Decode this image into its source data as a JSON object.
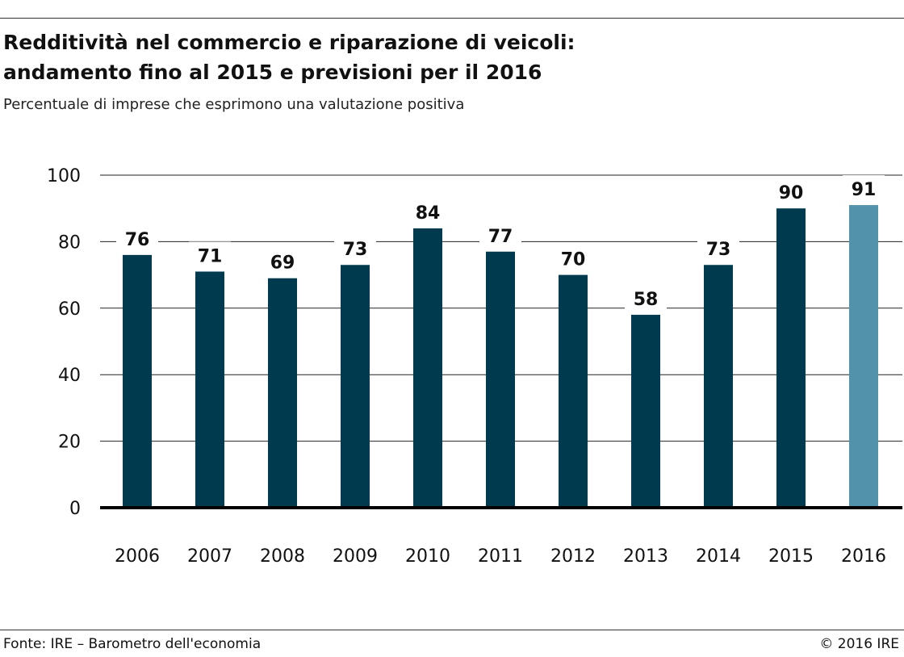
{
  "header": {
    "title_line1": "Redditività nel commercio e riparazione di veicoli:",
    "title_line2": "andamento fino al 2015 e previsioni per il 2016",
    "subtitle": "Percentuale di imprese che esprimono una valutazione positiva"
  },
  "footer": {
    "source": "Fonte: IRE – Barometro dell'economia",
    "copyright": "© 2016 IRE"
  },
  "colors": {
    "bar_actual": "#003a4f",
    "bar_forecast": "#5392ab",
    "gridline": "#222222",
    "baseline": "#000000"
  },
  "chart_data": {
    "type": "bar",
    "title": "Redditività nel commercio e riparazione di veicoli: andamento fino al 2015 e previsioni per il 2016",
    "subtitle": "Percentuale di imprese che esprimono una valutazione positiva",
    "xlabel": "",
    "ylabel": "",
    "categories": [
      "2006",
      "2007",
      "2008",
      "2009",
      "2010",
      "2011",
      "2012",
      "2013",
      "2014",
      "2015",
      "2016"
    ],
    "values": [
      76,
      71,
      69,
      73,
      84,
      77,
      70,
      58,
      73,
      90,
      91
    ],
    "value_labels": [
      "76",
      "71",
      "69",
      "73",
      "84",
      "77",
      "70",
      "58",
      "73",
      "90",
      "91"
    ],
    "forecast_categories": [
      "2016"
    ],
    "ylim": [
      0,
      100
    ],
    "yticks": [
      0,
      20,
      40,
      60,
      80,
      100
    ],
    "ytick_labels": [
      "0",
      "20",
      "40",
      "60",
      "80",
      "100"
    ],
    "grid": true,
    "legend": "none"
  }
}
